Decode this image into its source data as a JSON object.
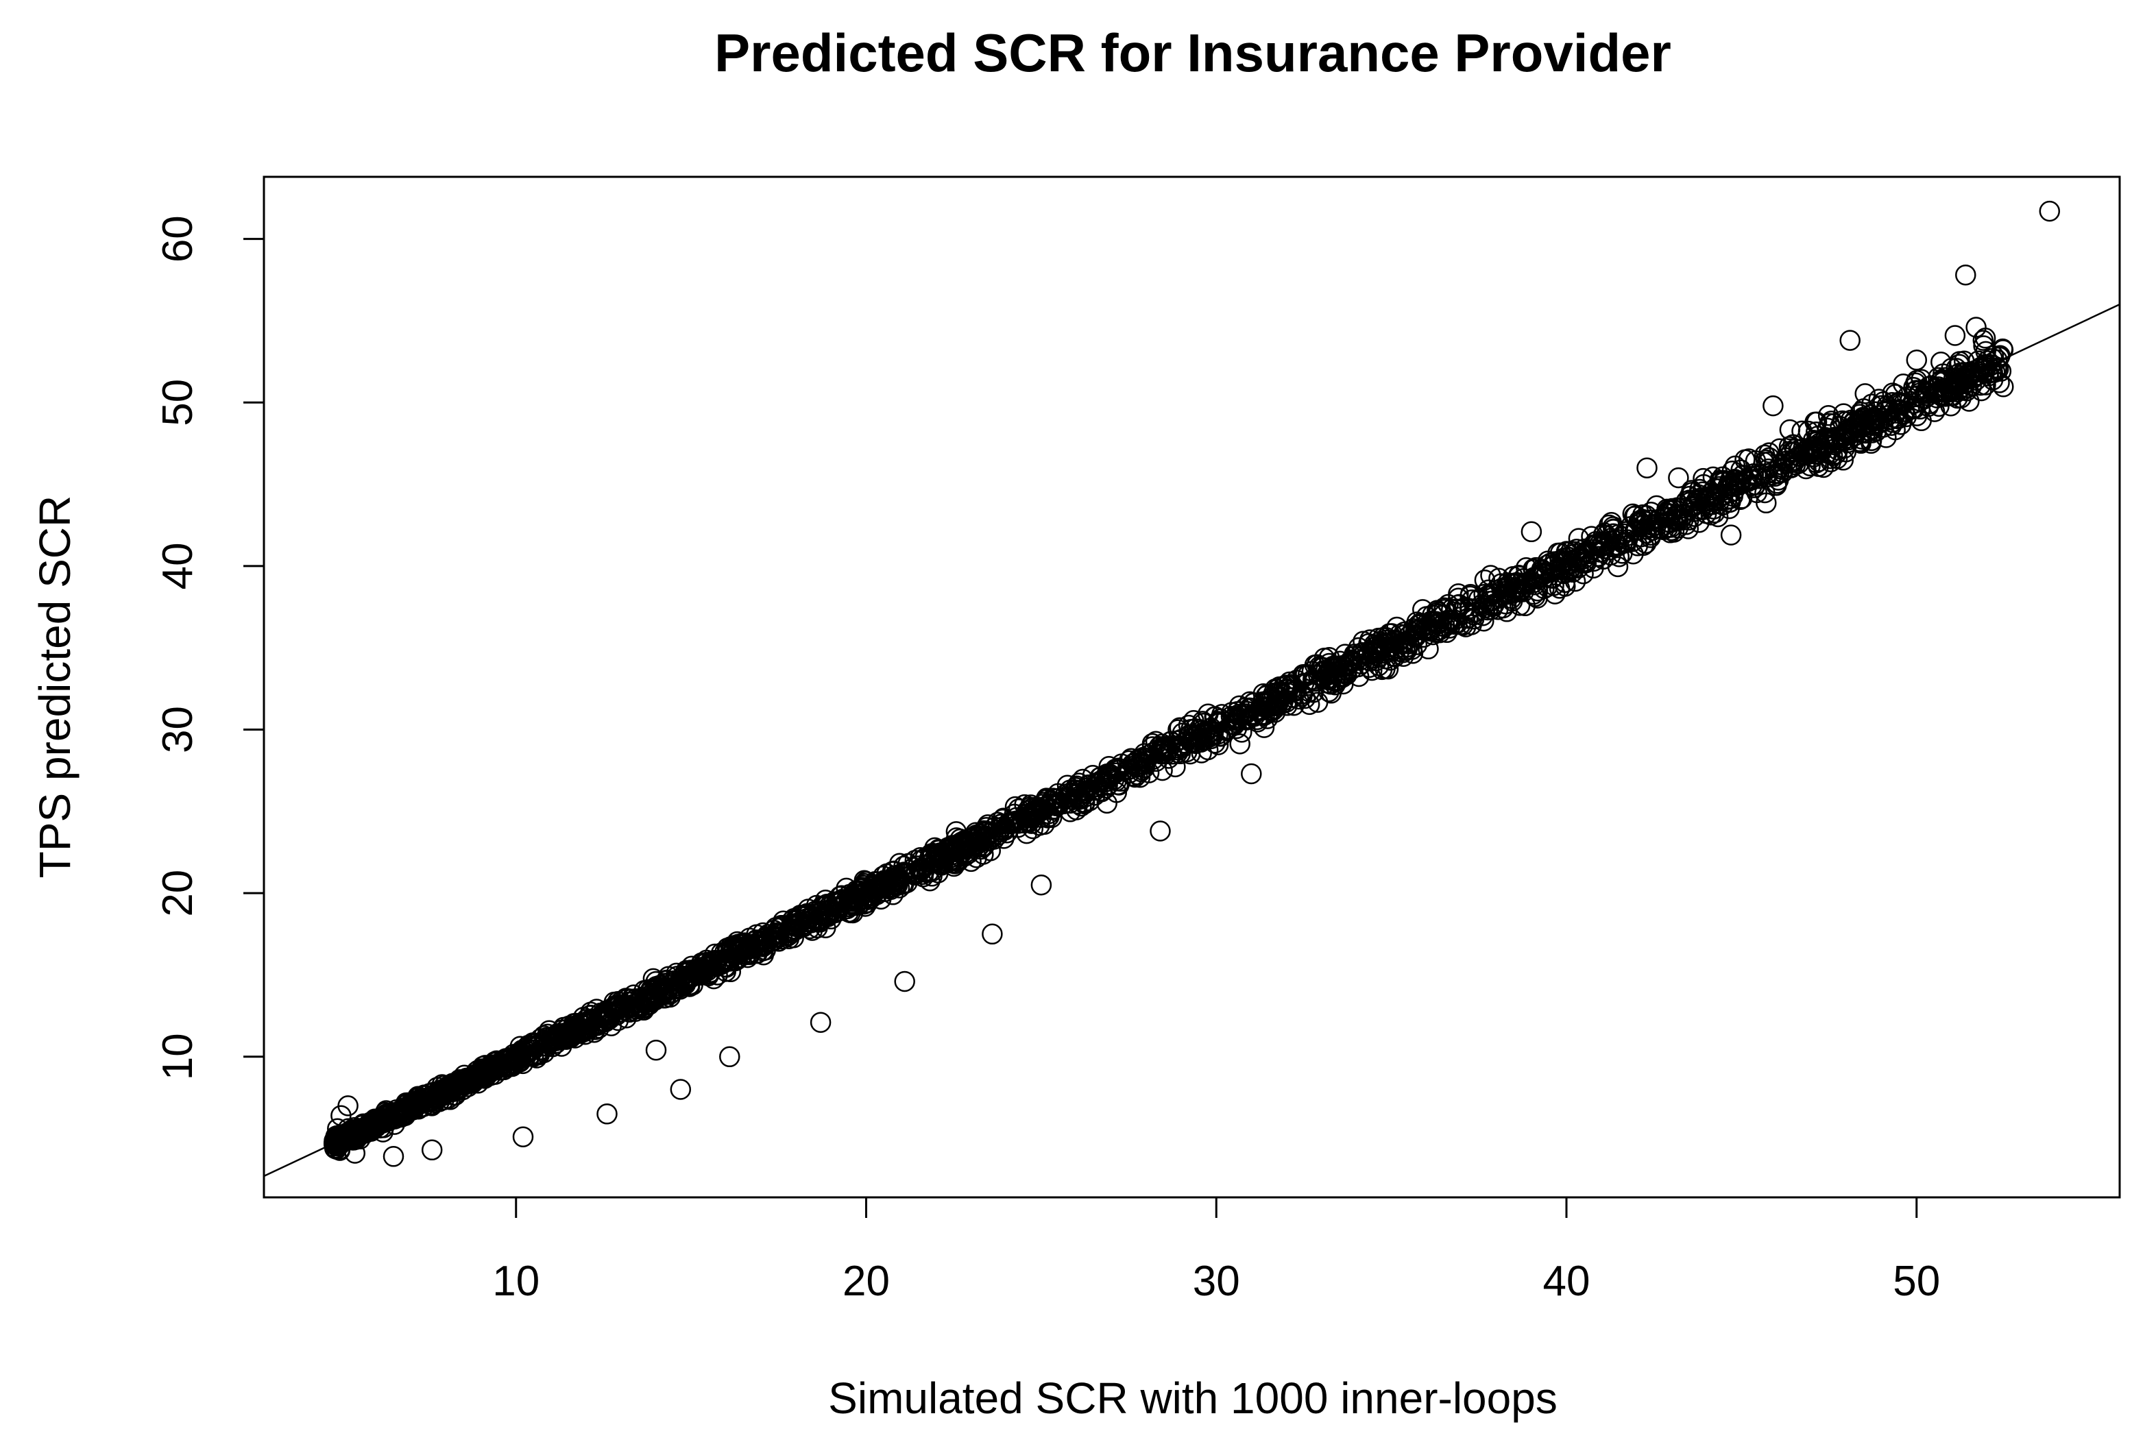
{
  "chart_data": {
    "type": "scatter",
    "title": "Predicted SCR for Insurance Provider",
    "xlabel": "Simulated SCR with 1000 inner-loops",
    "ylabel": "TPS predicted SCR",
    "xlim": [
      2.8,
      55.8
    ],
    "ylim": [
      1.4,
      63.8
    ],
    "xticks": [
      10,
      20,
      30,
      40,
      50
    ],
    "yticks": [
      10,
      20,
      30,
      40,
      50,
      60
    ],
    "grid": false,
    "legend": "none",
    "reference_line": {
      "name": "regression line",
      "x": [
        2.8,
        55.8
      ],
      "y": [
        2.7,
        56.0
      ]
    },
    "dense_band": {
      "description": "thousands of overlapping points along the regression line",
      "x_min": 4.8,
      "x_max": 52.5,
      "approx_count": 10000
    },
    "points": [
      {
        "x": 53.8,
        "y": 61.7
      },
      {
        "x": 51.4,
        "y": 57.8
      },
      {
        "x": 48.1,
        "y": 53.8
      },
      {
        "x": 51.1,
        "y": 54.1
      },
      {
        "x": 51.7,
        "y": 54.6
      },
      {
        "x": 51.9,
        "y": 53.8
      },
      {
        "x": 50.0,
        "y": 52.6
      },
      {
        "x": 52.3,
        "y": 52.1
      },
      {
        "x": 45.9,
        "y": 49.8
      },
      {
        "x": 42.3,
        "y": 46.0
      },
      {
        "x": 43.2,
        "y": 45.4
      },
      {
        "x": 39.0,
        "y": 42.1
      },
      {
        "x": 44.7,
        "y": 41.9
      },
      {
        "x": 31.0,
        "y": 27.3
      },
      {
        "x": 28.4,
        "y": 23.8
      },
      {
        "x": 25.0,
        "y": 20.5
      },
      {
        "x": 23.6,
        "y": 17.5
      },
      {
        "x": 21.1,
        "y": 14.6
      },
      {
        "x": 18.7,
        "y": 12.1
      },
      {
        "x": 16.1,
        "y": 10.0
      },
      {
        "x": 14.0,
        "y": 10.4
      },
      {
        "x": 14.7,
        "y": 8.0
      },
      {
        "x": 12.6,
        "y": 6.5
      },
      {
        "x": 10.2,
        "y": 5.1
      },
      {
        "x": 7.6,
        "y": 4.3
      },
      {
        "x": 6.5,
        "y": 3.9
      },
      {
        "x": 5.4,
        "y": 4.1
      },
      {
        "x": 4.9,
        "y": 5.6
      },
      {
        "x": 5.0,
        "y": 6.4
      },
      {
        "x": 5.2,
        "y": 7.0
      },
      {
        "x": 6.2,
        "y": 5.4
      },
      {
        "x": 47.1,
        "y": 48.8
      },
      {
        "x": 48.4,
        "y": 47.6
      },
      {
        "x": 49.3,
        "y": 50.0
      },
      {
        "x": 50.1,
        "y": 49.6
      },
      {
        "x": 51.5,
        "y": 51.6
      }
    ]
  }
}
